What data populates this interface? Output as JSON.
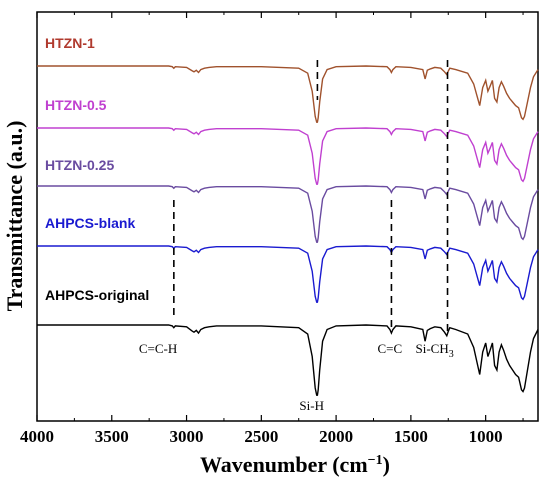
{
  "chart_data": {
    "type": "line",
    "xlabel": "Wavenumber (cm",
    "xlabel_sup": "−1",
    "xlabel_end": ")",
    "ylabel": "Transmittance (a.u.)",
    "xlim": [
      4000,
      650
    ],
    "x_reversed": true,
    "x_ticks": [
      4000,
      3500,
      3000,
      2500,
      2000,
      1500,
      1000
    ],
    "y_ticks_shown": false,
    "grid": false,
    "series": [
      {
        "name": "HTZN-1",
        "color": "#a0522d",
        "label_color": "#b03a2e",
        "offset": 4.0,
        "scale": 1.0
      },
      {
        "name": "HTZN-0.5",
        "color": "#c040d0",
        "label_color": "#c040d0",
        "offset": 3.0,
        "scale": 1.0
      },
      {
        "name": "HTZN-0.25",
        "color": "#6a4ca0",
        "label_color": "#6a4ca0",
        "offset": 2.0,
        "scale": 1.0
      },
      {
        "name": "AHPCS-blank",
        "color": "#1a1ad0",
        "label_color": "#1a1ad0",
        "offset": 1.0,
        "scale": 1.0
      },
      {
        "name": "AHPCS-original",
        "color": "#000000",
        "label_color": "#000000",
        "offset": 0.0,
        "scale": 1.25
      }
    ],
    "spectrum_x": [
      4000,
      3400,
      3120,
      3095,
      3085,
      3075,
      3000,
      2960,
      2950,
      2935,
      2920,
      2905,
      2880,
      2850,
      2800,
      2500,
      2250,
      2190,
      2160,
      2140,
      2130,
      2125,
      2120,
      2110,
      2090,
      2060,
      2000,
      1800,
      1660,
      1640,
      1630,
      1620,
      1600,
      1500,
      1420,
      1405,
      1390,
      1370,
      1340,
      1300,
      1275,
      1260,
      1250,
      1240,
      1200,
      1120,
      1080,
      1060,
      1040,
      1020,
      1000,
      985,
      970,
      955,
      940,
      925,
      910,
      895,
      880,
      860,
      840,
      820,
      800,
      780,
      760,
      750,
      740,
      720,
      700,
      680,
      650
    ],
    "spectrum_y": [
      0,
      0,
      0,
      -0.01,
      -0.03,
      -0.01,
      -0.02,
      -0.07,
      -0.08,
      -0.06,
      -0.09,
      -0.05,
      -0.03,
      -0.02,
      -0.01,
      -0.01,
      -0.03,
      -0.1,
      -0.35,
      -0.7,
      -0.78,
      -0.78,
      -0.72,
      -0.5,
      -0.18,
      -0.05,
      -0.01,
      0,
      -0.01,
      -0.05,
      -0.09,
      -0.05,
      -0.01,
      -0.02,
      -0.05,
      -0.18,
      -0.06,
      -0.04,
      -0.02,
      -0.03,
      -0.08,
      -0.12,
      -0.07,
      -0.03,
      -0.05,
      -0.1,
      -0.25,
      -0.4,
      -0.55,
      -0.3,
      -0.2,
      -0.35,
      -0.28,
      -0.2,
      -0.45,
      -0.5,
      -0.3,
      -0.22,
      -0.28,
      -0.38,
      -0.45,
      -0.5,
      -0.55,
      -0.58,
      -0.72,
      -0.74,
      -0.7,
      -0.5,
      -0.3,
      -0.15,
      -0.05
    ],
    "annotations": [
      {
        "label": "C=C-H",
        "x": 3085
      },
      {
        "label": "Si-H",
        "x": 2125
      },
      {
        "label": "C=C",
        "x": 1630
      },
      {
        "label": "Si-CH",
        "sub": "3",
        "x": 1255
      }
    ]
  }
}
